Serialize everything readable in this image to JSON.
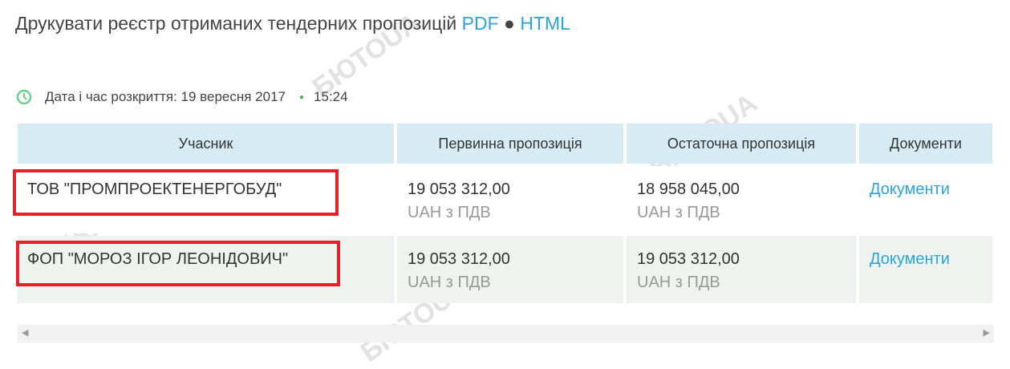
{
  "header": {
    "title": "Друкувати реєстр отриманих тендерних пропозицій",
    "pdf_link": "PDF",
    "separator": "●",
    "html_link": "HTML"
  },
  "opening": {
    "label": "Дата і час розкриття: 19 вересня 2017",
    "time": "15:24",
    "icon": "clock-icon",
    "accent": "#4caf50"
  },
  "table": {
    "headers": [
      "Учасник",
      "Первинна пропозиція",
      "Остаточна пропозиція",
      "Документи"
    ],
    "rows": [
      {
        "participant": "ТОВ \"ПРОМПРОЕКТЕНЕРГОБУД\"",
        "initial": "19 053 312,00",
        "initial_cur": "UAH з ПДВ",
        "final": "18 958 045,00",
        "final_cur": "UAH з ПДВ",
        "docs": "Документи"
      },
      {
        "participant": "ФОП \"МОРОЗ ІГОР ЛЕОНІДОВИЧ\"",
        "initial": "19 053 312,00",
        "initial_cur": "UAH з ПДВ",
        "final": "19 053 312,00",
        "final_cur": "UAH з ПДВ",
        "docs": "Документи"
      }
    ]
  },
  "watermark": "БЮТОUA",
  "colors": {
    "link": "#2aa5dc",
    "header_bg": "#d6ebf2",
    "highlight": "#e8202a"
  }
}
